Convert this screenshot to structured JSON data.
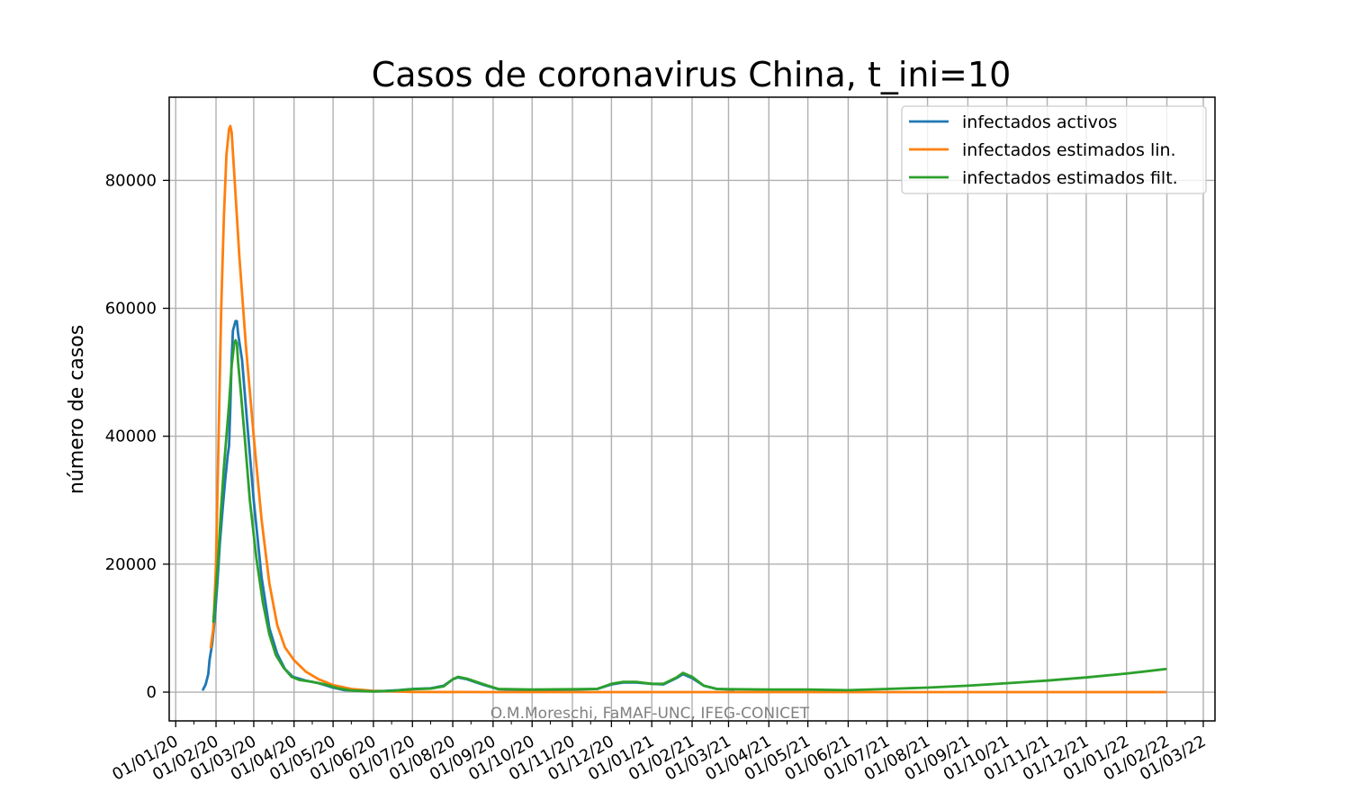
{
  "chart_data": {
    "type": "line",
    "title": "Casos de coronavirus China, t_ini=10",
    "xlabel": "",
    "ylabel": "número de casos",
    "watermark": "O.M.Moreschi, FaMAF-UNC, IFEG-CONICET",
    "xlim": [
      "2019-12-27",
      "2022-03-10"
    ],
    "ylim": [
      -4500,
      93000
    ],
    "x_ticks": [
      "01/01/20",
      "01/02/20",
      "01/03/20",
      "01/04/20",
      "01/05/20",
      "01/06/20",
      "01/07/20",
      "01/08/20",
      "01/09/20",
      "01/10/20",
      "01/11/20",
      "01/12/20",
      "01/01/21",
      "01/02/21",
      "01/03/21",
      "01/04/21",
      "01/05/21",
      "01/06/21",
      "01/07/21",
      "01/08/21",
      "01/09/21",
      "01/10/21",
      "01/11/21",
      "01/12/21",
      "01/01/22",
      "01/02/22",
      "01/03/22"
    ],
    "y_ticks": [
      0,
      20000,
      40000,
      60000,
      80000
    ],
    "grid": true,
    "legend_position": "top-right",
    "series": [
      {
        "name": "infectados activos",
        "color": "#1f77b4",
        "points": [
          [
            "2020-01-22",
            400
          ],
          [
            "2020-01-24",
            1200
          ],
          [
            "2020-01-26",
            2800
          ],
          [
            "2020-01-27",
            5000
          ],
          [
            "2020-01-29",
            7500
          ],
          [
            "2020-01-31",
            11500
          ],
          [
            "2020-02-02",
            17000
          ],
          [
            "2020-02-04",
            23500
          ],
          [
            "2020-02-06",
            28500
          ],
          [
            "2020-02-08",
            33000
          ],
          [
            "2020-02-10",
            37000
          ],
          [
            "2020-02-11",
            38500
          ],
          [
            "2020-02-12",
            44500
          ],
          [
            "2020-02-13",
            52000
          ],
          [
            "2020-02-14",
            56500
          ],
          [
            "2020-02-16",
            58000
          ],
          [
            "2020-02-17",
            58000
          ],
          [
            "2020-02-18",
            56000
          ],
          [
            "2020-02-21",
            52000
          ],
          [
            "2020-02-25",
            42000
          ],
          [
            "2020-03-01",
            30000
          ],
          [
            "2020-03-07",
            18000
          ],
          [
            "2020-03-13",
            10000
          ],
          [
            "2020-03-19",
            6000
          ],
          [
            "2020-03-25",
            3600
          ],
          [
            "2020-03-31",
            2400
          ],
          [
            "2020-04-10",
            1800
          ],
          [
            "2020-04-20",
            1400
          ],
          [
            "2020-05-01",
            700
          ],
          [
            "2020-05-10",
            300
          ],
          [
            "2020-05-25",
            150
          ],
          [
            "2020-06-10",
            200
          ],
          [
            "2020-06-20",
            300
          ],
          [
            "2020-07-01",
            500
          ],
          [
            "2020-07-15",
            600
          ],
          [
            "2020-07-25",
            1000
          ],
          [
            "2020-08-01",
            2000
          ],
          [
            "2020-08-05",
            2300
          ],
          [
            "2020-08-12",
            2000
          ],
          [
            "2020-08-25",
            1100
          ],
          [
            "2020-09-05",
            450
          ],
          [
            "2020-10-01",
            300
          ],
          [
            "2020-11-01",
            400
          ],
          [
            "2020-11-20",
            500
          ],
          [
            "2020-12-01",
            1200
          ],
          [
            "2020-12-10",
            1500
          ],
          [
            "2020-12-20",
            1500
          ],
          [
            "2021-01-01",
            1300
          ],
          [
            "2021-01-10",
            1200
          ],
          [
            "2021-01-20",
            2200
          ],
          [
            "2021-01-25",
            2800
          ],
          [
            "2021-02-01",
            2200
          ],
          [
            "2021-02-10",
            1000
          ],
          [
            "2021-02-20",
            500
          ],
          [
            "2021-03-05",
            400
          ]
        ]
      },
      {
        "name": "infectados estimados lin.",
        "color": "#ff7f0e",
        "points": [
          [
            "2020-01-28",
            7000
          ],
          [
            "2020-01-30",
            10000
          ],
          [
            "2020-02-01",
            20000
          ],
          [
            "2020-02-03",
            40000
          ],
          [
            "2020-02-05",
            60000
          ],
          [
            "2020-02-07",
            74000
          ],
          [
            "2020-02-09",
            84000
          ],
          [
            "2020-02-11",
            88000
          ],
          [
            "2020-02-12",
            88500
          ],
          [
            "2020-02-13",
            87500
          ],
          [
            "2020-02-15",
            81000
          ],
          [
            "2020-02-19",
            68000
          ],
          [
            "2020-02-24",
            54000
          ],
          [
            "2020-03-01",
            40000
          ],
          [
            "2020-03-07",
            27000
          ],
          [
            "2020-03-13",
            17000
          ],
          [
            "2020-03-19",
            10500
          ],
          [
            "2020-03-25",
            7000
          ],
          [
            "2020-04-01",
            5000
          ],
          [
            "2020-04-10",
            3200
          ],
          [
            "2020-04-20",
            2000
          ],
          [
            "2020-05-01",
            1100
          ],
          [
            "2020-05-15",
            500
          ],
          [
            "2020-06-01",
            200
          ],
          [
            "2020-07-01",
            30
          ],
          [
            "2020-09-01",
            0
          ],
          [
            "2022-01-31",
            0
          ]
        ]
      },
      {
        "name": "infectados estimados filt.",
        "color": "#2ca02c",
        "points": [
          [
            "2020-01-30",
            11000
          ],
          [
            "2020-02-01",
            16000
          ],
          [
            "2020-02-03",
            22000
          ],
          [
            "2020-02-05",
            29000
          ],
          [
            "2020-02-07",
            35000
          ],
          [
            "2020-02-09",
            40000
          ],
          [
            "2020-02-11",
            45000
          ],
          [
            "2020-02-13",
            51000
          ],
          [
            "2020-02-15",
            54500
          ],
          [
            "2020-02-16",
            55000
          ],
          [
            "2020-02-17",
            54500
          ],
          [
            "2020-02-18",
            51500
          ],
          [
            "2020-02-20",
            47000
          ],
          [
            "2020-02-23",
            40000
          ],
          [
            "2020-02-27",
            30000
          ],
          [
            "2020-03-03",
            21000
          ],
          [
            "2020-03-08",
            14000
          ],
          [
            "2020-03-13",
            9000
          ],
          [
            "2020-03-18",
            5800
          ],
          [
            "2020-03-24",
            3800
          ],
          [
            "2020-03-30",
            2400
          ],
          [
            "2020-04-05",
            1900
          ],
          [
            "2020-04-15",
            1600
          ],
          [
            "2020-04-25",
            1200
          ],
          [
            "2020-05-05",
            600
          ],
          [
            "2020-05-15",
            250
          ],
          [
            "2020-06-01",
            100
          ],
          [
            "2020-06-15",
            200
          ],
          [
            "2020-07-01",
            450
          ],
          [
            "2020-07-15",
            550
          ],
          [
            "2020-07-25",
            900
          ],
          [
            "2020-08-01",
            2000
          ],
          [
            "2020-08-05",
            2400
          ],
          [
            "2020-08-12",
            2100
          ],
          [
            "2020-08-25",
            1200
          ],
          [
            "2020-09-05",
            500
          ],
          [
            "2020-10-01",
            400
          ],
          [
            "2020-11-01",
            450
          ],
          [
            "2020-11-20",
            500
          ],
          [
            "2020-12-01",
            1300
          ],
          [
            "2020-12-10",
            1600
          ],
          [
            "2020-12-20",
            1600
          ],
          [
            "2021-01-01",
            1300
          ],
          [
            "2021-01-10",
            1300
          ],
          [
            "2021-01-20",
            2300
          ],
          [
            "2021-01-25",
            3000
          ],
          [
            "2021-02-01",
            2400
          ],
          [
            "2021-02-10",
            1000
          ],
          [
            "2021-02-20",
            500
          ],
          [
            "2021-03-05",
            450
          ],
          [
            "2021-04-01",
            400
          ],
          [
            "2021-05-01",
            400
          ],
          [
            "2021-06-01",
            300
          ],
          [
            "2021-07-01",
            500
          ],
          [
            "2021-08-01",
            700
          ],
          [
            "2021-09-01",
            1000
          ],
          [
            "2021-10-01",
            1400
          ],
          [
            "2021-11-01",
            1800
          ],
          [
            "2021-12-01",
            2300
          ],
          [
            "2022-01-01",
            2900
          ],
          [
            "2022-01-31",
            3600
          ]
        ]
      }
    ]
  }
}
